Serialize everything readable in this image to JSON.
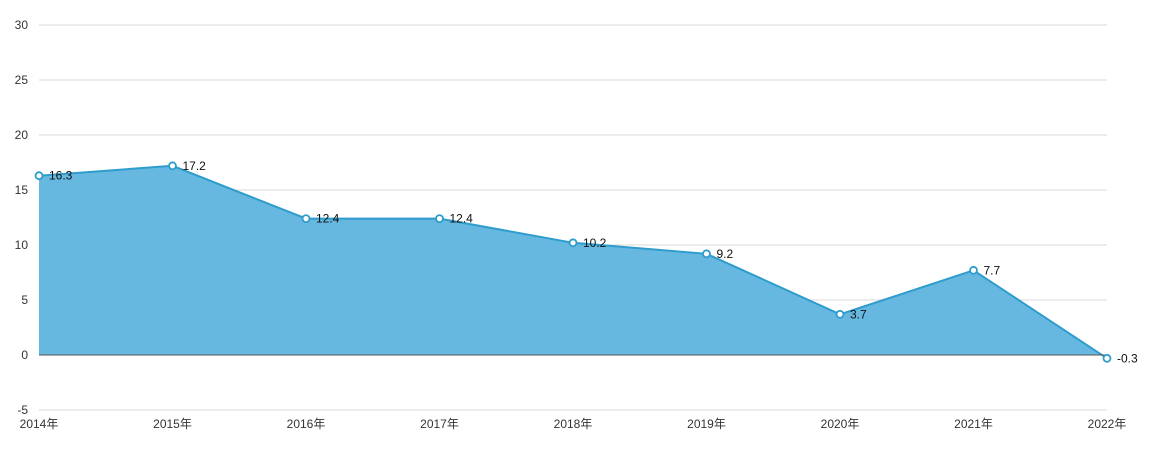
{
  "chart_data": {
    "type": "area",
    "title": "",
    "xlabel": "",
    "ylabel": "",
    "categories": [
      "2014年",
      "2015年",
      "2016年",
      "2017年",
      "2018年",
      "2019年",
      "2020年",
      "2021年",
      "2022年"
    ],
    "series": [
      {
        "values": [
          16.3,
          17.2,
          12.4,
          12.4,
          10.2,
          9.2,
          3.7,
          7.7,
          -0.3
        ],
        "data_labels": [
          "16.3",
          "17.2",
          "12.4",
          "12.4",
          "10.2",
          "9.2",
          "3.7",
          "7.7",
          "-0.3"
        ]
      }
    ],
    "ylim": [
      -5,
      30
    ],
    "yticks": [
      -5,
      0,
      5,
      10,
      15,
      20,
      25,
      30
    ],
    "ytick_labels": [
      "-5",
      "0",
      "5",
      "10",
      "15",
      "20",
      "25",
      "30"
    ],
    "grid": true,
    "legend": "none",
    "colors": {
      "area_fill": "#66b8e0",
      "line": "#2e9ccc",
      "marker_fill": "#ffffff",
      "grid": "#d9d9d9",
      "zero_line": "#555555"
    }
  }
}
